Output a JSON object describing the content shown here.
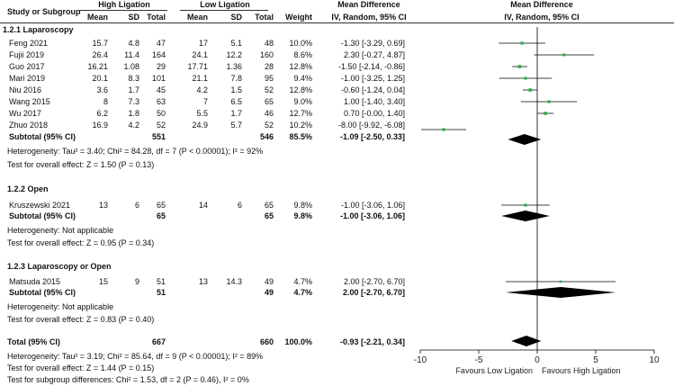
{
  "headers": {
    "study": "Study or Subgroup",
    "high_group": "High Ligation",
    "low_group": "Low Ligation",
    "mean": "Mean",
    "sd": "SD",
    "total": "Total",
    "weight": "Weight",
    "md_title": "Mean Difference",
    "md_method": "IV, Random, 95% CI",
    "plot_title": "Mean Difference",
    "plot_method": "IV, Random, 95% CI"
  },
  "subgroups": [
    {
      "title": "1.2.1 Laparoscopy",
      "studies": [
        {
          "name": "Feng 2021",
          "h_mean": "15.7",
          "h_sd": "4.8",
          "h_n": "47",
          "l_mean": "17",
          "l_sd": "5.1",
          "l_n": "48",
          "weight": "10.0%",
          "ci_text": "-1.30 [-3.29, 0.69]"
        },
        {
          "name": "Fujii 2019",
          "h_mean": "26.4",
          "h_sd": "11.4",
          "h_n": "164",
          "l_mean": "24.1",
          "l_sd": "12.2",
          "l_n": "160",
          "weight": "8.6%",
          "ci_text": "2.30 [-0.27, 4.87]"
        },
        {
          "name": "Guo 2017",
          "h_mean": "16.21",
          "h_sd": "1.08",
          "h_n": "29",
          "l_mean": "17.71",
          "l_sd": "1.36",
          "l_n": "28",
          "weight": "12.8%",
          "ci_text": "-1.50 [-2.14, -0.86]"
        },
        {
          "name": "Mari 2019",
          "h_mean": "20.1",
          "h_sd": "8.3",
          "h_n": "101",
          "l_mean": "21.1",
          "l_sd": "7.8",
          "l_n": "95",
          "weight": "9.4%",
          "ci_text": "-1.00 [-3.25, 1.25]"
        },
        {
          "name": "Niu 2016",
          "h_mean": "3.6",
          "h_sd": "1.7",
          "h_n": "45",
          "l_mean": "4.2",
          "l_sd": "1.5",
          "l_n": "52",
          "weight": "12.8%",
          "ci_text": "-0.60 [-1.24, 0.04]"
        },
        {
          "name": "Wang 2015",
          "h_mean": "8",
          "h_sd": "7.3",
          "h_n": "63",
          "l_mean": "7",
          "l_sd": "6.5",
          "l_n": "65",
          "weight": "9.0%",
          "ci_text": "1.00 [-1.40, 3.40]"
        },
        {
          "name": "Wu 2017",
          "h_mean": "6.2",
          "h_sd": "1.8",
          "h_n": "50",
          "l_mean": "5.5",
          "l_sd": "1.7",
          "l_n": "46",
          "weight": "12.7%",
          "ci_text": "0.70 [-0.00, 1.40]"
        },
        {
          "name": "Zhuo 2018",
          "h_mean": "16.9",
          "h_sd": "4.2",
          "h_n": "52",
          "l_mean": "24.9",
          "l_sd": "5.7",
          "l_n": "52",
          "weight": "10.2%",
          "ci_text": "-8.00 [-9.92, -6.08]"
        }
      ],
      "subtotal": {
        "label": "Subtotal (95% CI)",
        "h_n": "551",
        "l_n": "546",
        "weight": "85.5%",
        "ci_text": "-1.09 [-2.50, 0.33]"
      },
      "heterogeneity": "Heterogeneity: Tau² = 3.40; Chi² = 84.28, df = 7 (P < 0.00001); I² = 92%",
      "overall_test": "Test for overall effect: Z = 1.50 (P = 0.13)"
    },
    {
      "title": "1.2.2 Open",
      "studies": [
        {
          "name": "Kruszewski 2021",
          "h_mean": "13",
          "h_sd": "6",
          "h_n": "65",
          "l_mean": "14",
          "l_sd": "6",
          "l_n": "65",
          "weight": "9.8%",
          "ci_text": "-1.00 [-3.06, 1.06]"
        }
      ],
      "subtotal": {
        "label": "Subtotal (95% CI)",
        "h_n": "65",
        "l_n": "65",
        "weight": "9.8%",
        "ci_text": "-1.00 [-3.06, 1.06]"
      },
      "heterogeneity": "Heterogeneity: Not applicable",
      "overall_test": "Test for overall effect: Z = 0.95 (P = 0.34)"
    },
    {
      "title": "1.2.3 Laparoscopy or Open",
      "studies": [
        {
          "name": "Matsuda 2015",
          "h_mean": "15",
          "h_sd": "9",
          "h_n": "51",
          "l_mean": "13",
          "l_sd": "14.3",
          "l_n": "49",
          "weight": "4.7%",
          "ci_text": "2.00 [-2.70, 6.70]"
        }
      ],
      "subtotal": {
        "label": "Subtotal (95% CI)",
        "h_n": "51",
        "l_n": "49",
        "weight": "4.7%",
        "ci_text": "2.00 [-2.70, 6.70]"
      },
      "heterogeneity": "Heterogeneity: Not applicable",
      "overall_test": "Test for overall effect: Z = 0.83 (P = 0.40)"
    }
  ],
  "total": {
    "label": "Total (95% CI)",
    "h_n": "667",
    "l_n": "660",
    "weight": "100.0%",
    "ci_text": "-0.93 [-2.21, 0.34]",
    "heterogeneity": "Heterogeneity: Tau² = 3.19; Chi² = 85.64, df = 9 (P < 0.00001); I² = 89%",
    "overall_test": "Test for overall effect: Z = 1.44 (P = 0.15)",
    "subgroup_test": "Test for subgroup differences: Chi² = 1.53, df = 2 (P = 0.46), I² = 0%"
  },
  "chart_data": {
    "type": "forest",
    "title": "Mean Difference",
    "method": "IV, Random, 95% CI",
    "xlim": [
      -10,
      10
    ],
    "ticks": [
      -10,
      -5,
      0,
      5,
      10
    ],
    "tick_labels": [
      "-10",
      "-5",
      "0",
      "5",
      "10"
    ],
    "left_label": "Favours Low Ligation",
    "right_label": "Favours High Ligation",
    "colors": {
      "marker": "#22b14c",
      "diamond": "#000000",
      "line": "#000000"
    },
    "studies": [
      {
        "name": "Feng 2021",
        "md": -1.3,
        "lo": -3.29,
        "hi": 0.69,
        "weight": 10.0
      },
      {
        "name": "Fujii 2019",
        "md": 2.3,
        "lo": -0.27,
        "hi": 4.87,
        "weight": 8.6
      },
      {
        "name": "Guo 2017",
        "md": -1.5,
        "lo": -2.14,
        "hi": -0.86,
        "weight": 12.8
      },
      {
        "name": "Mari 2019",
        "md": -1.0,
        "lo": -3.25,
        "hi": 1.25,
        "weight": 9.4
      },
      {
        "name": "Niu 2016",
        "md": -0.6,
        "lo": -1.24,
        "hi": 0.04,
        "weight": 12.8
      },
      {
        "name": "Wang 2015",
        "md": 1.0,
        "lo": -1.4,
        "hi": 3.4,
        "weight": 9.0
      },
      {
        "name": "Wu 2017",
        "md": 0.7,
        "lo": -0.0,
        "hi": 1.4,
        "weight": 12.7
      },
      {
        "name": "Zhuo 2018",
        "md": -8.0,
        "lo": -9.92,
        "hi": -6.08,
        "weight": 10.2
      },
      {
        "name": "Kruszewski 2021",
        "md": -1.0,
        "lo": -3.06,
        "hi": 1.06,
        "weight": 9.8
      },
      {
        "name": "Matsuda 2015",
        "md": 2.0,
        "lo": -2.7,
        "hi": 6.7,
        "weight": 4.7
      }
    ],
    "pooled": [
      {
        "name": "Subtotal 1.2.1",
        "md": -1.09,
        "lo": -2.5,
        "hi": 0.33
      },
      {
        "name": "Subtotal 1.2.2",
        "md": -1.0,
        "lo": -3.06,
        "hi": 1.06
      },
      {
        "name": "Subtotal 1.2.3",
        "md": 2.0,
        "lo": -2.7,
        "hi": 6.7
      },
      {
        "name": "Total",
        "md": -0.93,
        "lo": -2.21,
        "hi": 0.34
      }
    ]
  }
}
